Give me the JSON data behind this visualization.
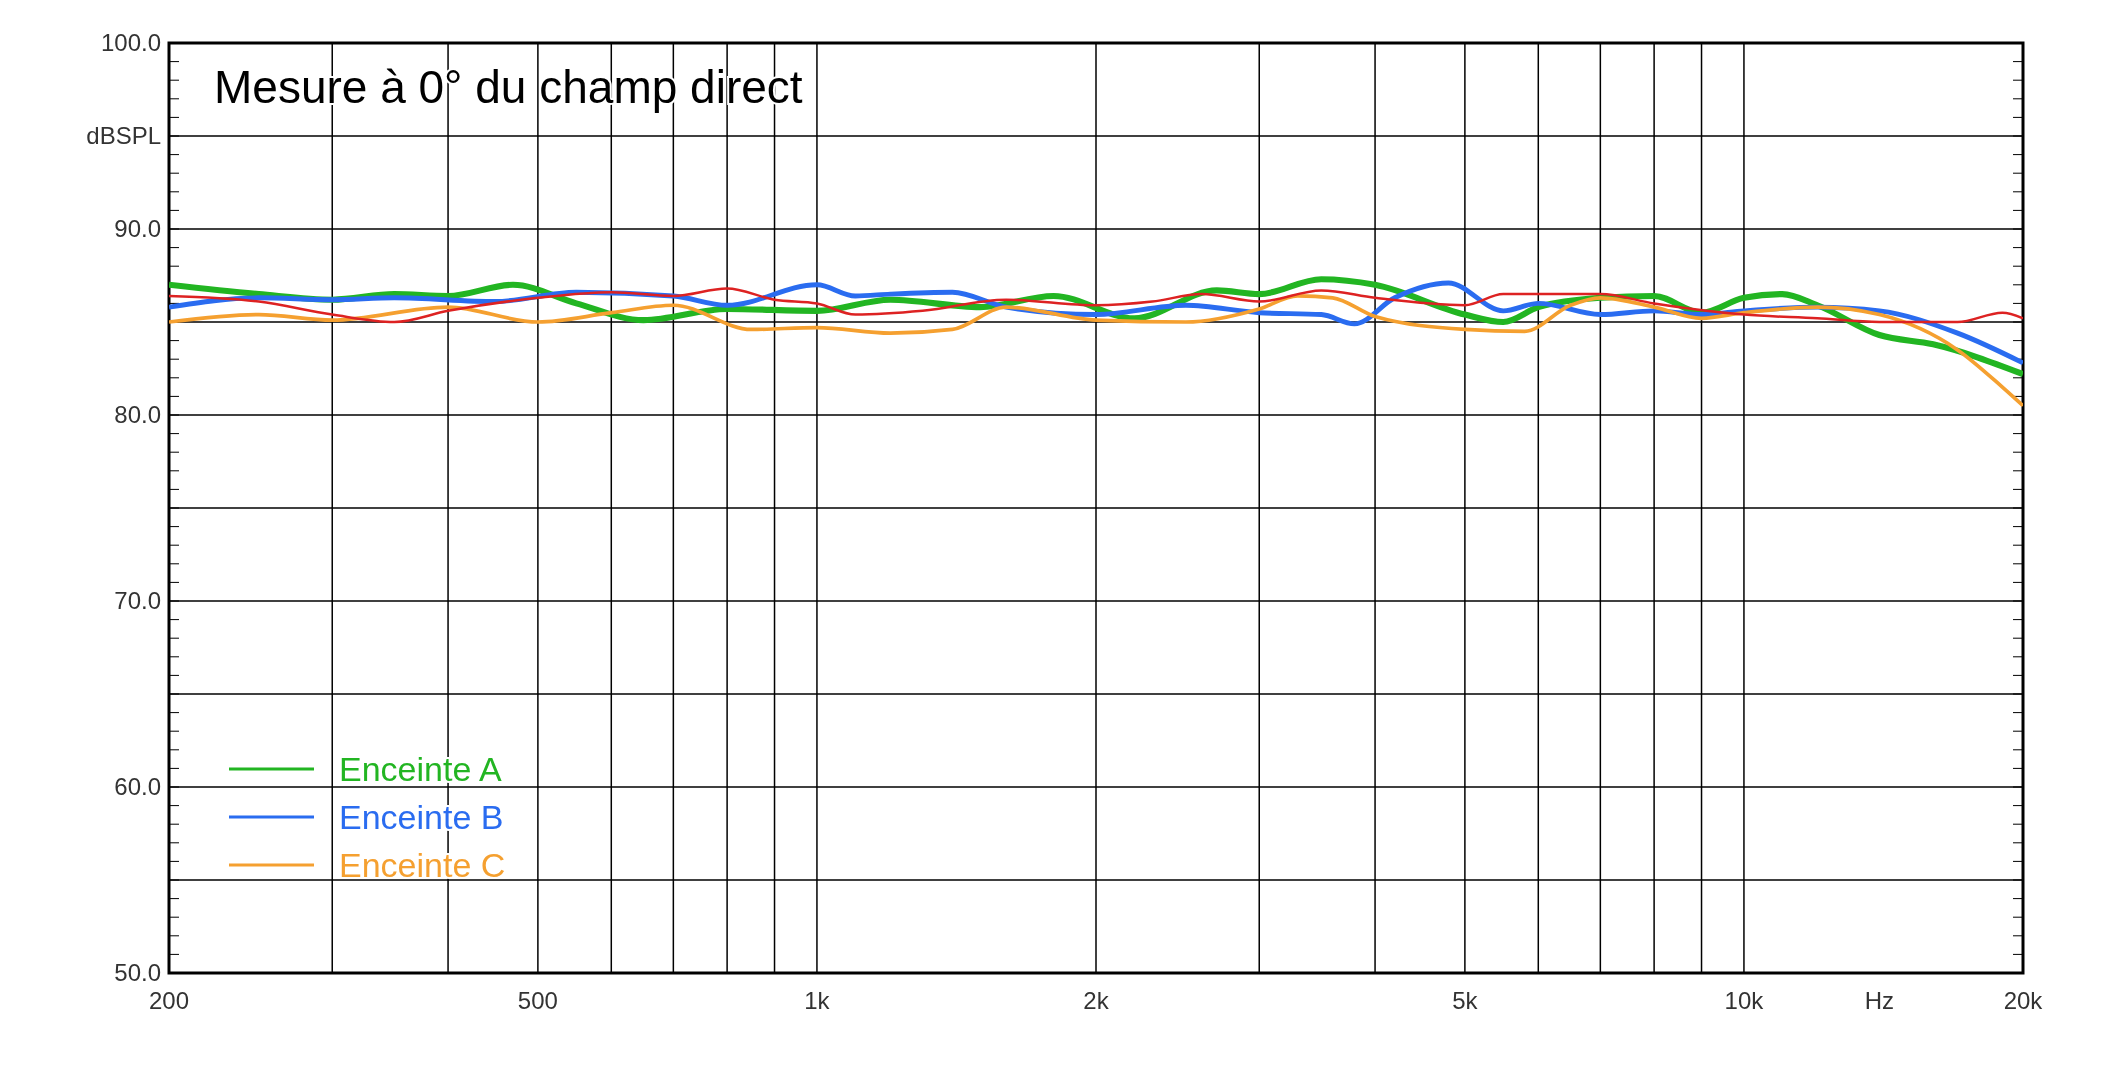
{
  "chart_data": {
    "type": "line",
    "title": "Mesure à 0° du champ direct",
    "ylabel": "dBSPL",
    "xlabel": "Hz",
    "log": "x",
    "grid": true,
    "legend": "bottom left",
    "line_style": "solid",
    "xlim": [
      200,
      20000
    ],
    "xticks": [
      200,
      500,
      {
        "value": 1000,
        "label": "1k"
      },
      {
        "value": 2000,
        "label": "2k"
      },
      {
        "value": 5000,
        "label": "5k"
      },
      {
        "value": 10000,
        "label": "10k"
      },
      {
        "value": 20000,
        "label": "20k"
      }
    ],
    "ylim": [
      50,
      100
    ],
    "yticks": [
      {
        "value": 50,
        "label": "50.0"
      },
      {
        "value": 55,
        "label": null
      },
      {
        "value": 60,
        "label": "60.0"
      },
      {
        "value": 65,
        "label": null
      },
      {
        "value": 70,
        "label": "70.0"
      },
      {
        "value": 75,
        "label": null
      },
      {
        "value": 80,
        "label": "80.0"
      },
      {
        "value": 85,
        "label": null
      },
      {
        "value": 90,
        "label": "90.0"
      },
      {
        "value": 95,
        "label": null
      },
      {
        "value": 100,
        "label": "100.0"
      }
    ],
    "series": [
      {
        "name": "Enceinte A",
        "color": "#22b522",
        "x": [
          200,
          250,
          300,
          350,
          400,
          470,
          550,
          650,
          800,
          1000,
          1200,
          1500,
          1800,
          2200,
          2700,
          3000,
          3500,
          4000,
          5000,
          5500,
          6000,
          7000,
          8000,
          9000,
          10000,
          11000,
          12000,
          14000,
          16000,
          20000
        ],
        "values": [
          87.0,
          86.5,
          86.2,
          86.5,
          86.4,
          87.0,
          86.0,
          85.1,
          85.7,
          85.6,
          86.2,
          85.8,
          86.4,
          85.2,
          86.7,
          86.5,
          87.3,
          87.0,
          85.4,
          85.0,
          85.8,
          86.3,
          86.4,
          85.5,
          86.3,
          86.5,
          85.9,
          84.3,
          83.8,
          82.2
        ]
      },
      {
        "name": "Enceinte B",
        "color": "#2a6cf0",
        "x": [
          200,
          250,
          300,
          350,
          450,
          550,
          700,
          800,
          1000,
          1100,
          1200,
          1400,
          1600,
          2000,
          2500,
          3000,
          3500,
          3800,
          4200,
          4800,
          5500,
          6000,
          7000,
          8000,
          9000,
          10000,
          12000,
          14000,
          17000,
          20000
        ],
        "values": [
          85.8,
          86.3,
          86.2,
          86.3,
          86.1,
          86.6,
          86.4,
          85.9,
          87.0,
          86.4,
          86.5,
          86.6,
          85.8,
          85.4,
          85.9,
          85.5,
          85.4,
          84.9,
          86.3,
          87.1,
          85.6,
          86.0,
          85.4,
          85.6,
          85.4,
          85.6,
          85.8,
          85.6,
          84.4,
          82.8
        ]
      },
      {
        "name": "Enceinte C",
        "color": "#f5a030",
        "x": [
          200,
          250,
          300,
          400,
          500,
          600,
          700,
          850,
          1000,
          1200,
          1400,
          1600,
          2000,
          2500,
          3000,
          3300,
          3600,
          4000,
          5000,
          5800,
          6500,
          7000,
          8000,
          9000,
          10000,
          12000,
          14000,
          17000,
          19000,
          20000
        ],
        "values": [
          85.0,
          85.4,
          85.1,
          85.8,
          85.0,
          85.5,
          85.9,
          84.6,
          84.7,
          84.4,
          84.6,
          85.8,
          85.1,
          85.0,
          85.7,
          86.4,
          86.3,
          85.3,
          84.6,
          84.5,
          85.9,
          86.3,
          85.8,
          85.2,
          85.5,
          85.8,
          85.4,
          83.5,
          81.5,
          80.5
        ]
      },
      {
        "color": "#dd2222",
        "x": [
          200,
          250,
          300,
          350,
          400,
          500,
          600,
          700,
          800,
          900,
          1000,
          1100,
          1300,
          1600,
          2000,
          2300,
          2600,
          3000,
          3500,
          4000,
          5000,
          5500,
          7000,
          8000,
          10000,
          12000,
          14000,
          17000,
          19000,
          20000
        ],
        "values": [
          86.4,
          86.1,
          85.4,
          85.0,
          85.6,
          86.3,
          86.6,
          86.4,
          86.8,
          86.2,
          86.0,
          85.4,
          85.6,
          86.2,
          85.9,
          86.1,
          86.5,
          86.1,
          86.7,
          86.3,
          85.9,
          86.5,
          86.5,
          86.0,
          85.4,
          85.2,
          85.0,
          85.0,
          85.5,
          85.2
        ]
      }
    ]
  }
}
